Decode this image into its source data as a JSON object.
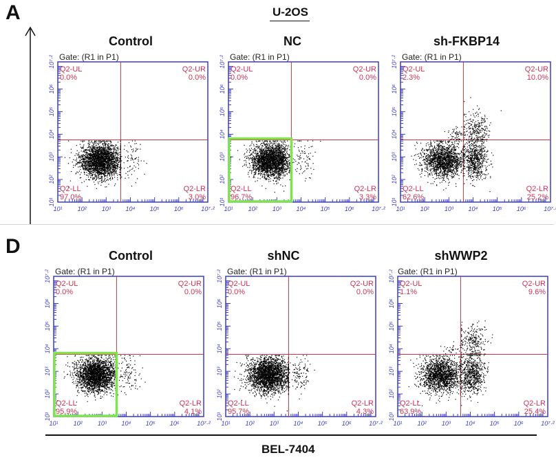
{
  "figure": {
    "panel_a": {
      "letter": "A",
      "cell_line": "U-2OS"
    },
    "panel_d": {
      "letter": "D",
      "cell_line": "BEL-7404"
    },
    "colors": {
      "frame": "#3a3acc",
      "quadrant_line": "#cc3344",
      "quadrant_label": "#cc3355",
      "dots": "#000000",
      "highlight": "#7ee64a"
    }
  },
  "chart_data": [
    {
      "type": "scatter",
      "title": "Control",
      "gate": "Gate: (R1 in P1)",
      "x_ticks": [
        "10¹",
        "10²",
        "10³",
        "10⁴",
        "10⁵",
        "10⁶",
        "10⁷·²"
      ],
      "y_ticks": [
        "10¹",
        "10²",
        "10³",
        "10⁴",
        "10⁵",
        "10⁶",
        "10⁷·²"
      ],
      "xlim": [
        1,
        7.2
      ],
      "ylim": [
        1,
        7.2
      ],
      "scale": "log",
      "quadrants": [
        {
          "name": "Q2-UL",
          "percent": "0.0%"
        },
        {
          "name": "Q2-UR",
          "percent": "0.0%"
        },
        {
          "name": "Q2-LL",
          "percent": "97.0%"
        },
        {
          "name": "Q2-LR",
          "percent": "3.0%"
        }
      ],
      "highlight_ll": false
    },
    {
      "type": "scatter",
      "title": "NC",
      "gate": "Gate: (R1 in P1)",
      "x_ticks": [
        "10¹",
        "10²",
        "10³",
        "10⁴",
        "10⁵",
        "10⁶",
        "10⁷·²"
      ],
      "y_ticks": [
        "10¹",
        "10²",
        "10³",
        "10⁴",
        "10⁵",
        "10⁶",
        "10⁷·²"
      ],
      "xlim": [
        1,
        7.2
      ],
      "ylim": [
        1,
        7.2
      ],
      "scale": "log",
      "quadrants": [
        {
          "name": "Q2-UL",
          "percent": "0.0%"
        },
        {
          "name": "Q2-UR",
          "percent": "0.0%"
        },
        {
          "name": "Q2-LL",
          "percent": "96.7%"
        },
        {
          "name": "Q2-LR",
          "percent": "3.3%"
        }
      ],
      "highlight_ll": true
    },
    {
      "type": "scatter",
      "title": "sh-FKBP14",
      "gate": "Gate: (R1 in P1)",
      "x_ticks": [
        "10¹",
        "10²",
        "10³",
        "10⁴",
        "10⁵",
        "10⁶",
        "10⁷·²"
      ],
      "y_ticks": [
        "10¹",
        "10²",
        "10³",
        "10⁴",
        "10⁵",
        "10⁶",
        "10⁷·²"
      ],
      "xlim": [
        1,
        7.2
      ],
      "ylim": [
        1,
        7.2
      ],
      "scale": "log",
      "quadrants": [
        {
          "name": "Q2-UL",
          "percent": "2.3%"
        },
        {
          "name": "Q2-UR",
          "percent": "10.0%"
        },
        {
          "name": "Q2-LL",
          "percent": "62.6%"
        },
        {
          "name": "Q2-LR",
          "percent": "25.2%"
        }
      ],
      "highlight_ll": false
    },
    {
      "type": "scatter",
      "title": "Control",
      "gate": "Gate: (R1 in P1)",
      "x_ticks": [
        "10¹",
        "10²",
        "10³",
        "10⁴",
        "10⁵",
        "10⁶",
        "10⁷·²"
      ],
      "y_ticks": [
        "10¹",
        "10²",
        "10³",
        "10⁴",
        "10⁵",
        "10⁶",
        "10⁷·²"
      ],
      "xlim": [
        1,
        7.2
      ],
      "ylim": [
        1,
        7.2
      ],
      "scale": "log",
      "quadrants": [
        {
          "name": "Q2-UL",
          "percent": "0.0%"
        },
        {
          "name": "Q2-UR",
          "percent": "0.0%"
        },
        {
          "name": "Q2-LL",
          "percent": "95.9%"
        },
        {
          "name": "Q2-LR",
          "percent": "4.1%"
        }
      ],
      "highlight_ll": true
    },
    {
      "type": "scatter",
      "title": "shNC",
      "gate": "Gate: (R1 in P1)",
      "x_ticks": [
        "10¹",
        "10²",
        "10³",
        "10⁴",
        "10⁵",
        "10⁶",
        "10⁷·²"
      ],
      "y_ticks": [
        "10¹",
        "10²",
        "10³",
        "10⁴",
        "10⁵",
        "10⁶",
        "10⁷·²"
      ],
      "xlim": [
        1,
        7.2
      ],
      "ylim": [
        1,
        7.2
      ],
      "scale": "log",
      "quadrants": [
        {
          "name": "Q2-UL",
          "percent": "0.0%"
        },
        {
          "name": "Q2-UR",
          "percent": "0.0%"
        },
        {
          "name": "Q2-LL",
          "percent": "95.7%"
        },
        {
          "name": "Q2-LR",
          "percent": "4.3%"
        }
      ],
      "highlight_ll": false
    },
    {
      "type": "scatter",
      "title": "shWWP2",
      "gate": "Gate: (R1 in P1)",
      "x_ticks": [
        "10¹",
        "10²",
        "10³",
        "10⁴",
        "10⁵",
        "10⁶",
        "10⁷·²"
      ],
      "y_ticks": [
        "10¹",
        "10²",
        "10³",
        "10⁴",
        "10⁵",
        "10⁶",
        "10⁷·²"
      ],
      "xlim": [
        1,
        7.2
      ],
      "ylim": [
        1,
        7.2
      ],
      "scale": "log",
      "quadrants": [
        {
          "name": "Q2-UL",
          "percent": "1.1%"
        },
        {
          "name": "Q2-UR",
          "percent": "9.6%"
        },
        {
          "name": "Q2-LL",
          "percent": "63.9%"
        },
        {
          "name": "Q2-LR",
          "percent": "25.4%"
        }
      ],
      "highlight_ll": false
    }
  ]
}
